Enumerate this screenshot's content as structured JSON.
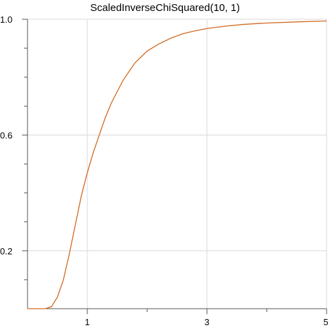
{
  "chart_data": {
    "type": "line",
    "title": "ScaledInverseChiSquared(10, 1)",
    "xlabel": "",
    "ylabel": "",
    "xlim": [
      0,
      5
    ],
    "ylim": [
      0,
      1
    ],
    "grid": true,
    "x_major_ticks": [
      1,
      3,
      5
    ],
    "x_major_tick_labels": [
      "1",
      "3",
      "5"
    ],
    "x_minor_ticks": [
      2,
      4
    ],
    "y_major_ticks": [
      0.2,
      0.6,
      1.0
    ],
    "y_major_tick_labels": [
      "0.2",
      "0.6",
      "1.0"
    ],
    "y_minor_ticks": [
      0.1,
      0.3,
      0.4,
      0.5,
      0.7,
      0.8,
      0.9
    ],
    "series": [
      {
        "color": "#d2691e",
        "x": [
          0.0,
          0.1,
          0.2,
          0.3,
          0.4,
          0.5,
          0.6,
          0.7,
          0.8,
          0.9,
          1.0,
          1.1,
          1.2,
          1.3,
          1.4,
          1.5,
          1.6,
          1.7,
          1.8,
          1.9,
          2.0,
          2.2,
          2.4,
          2.6,
          2.8,
          3.0,
          3.3,
          3.6,
          4.0,
          4.5,
          5.0
        ],
        "y": [
          0.0,
          0.0,
          0.0,
          0.0,
          0.007,
          0.04,
          0.1,
          0.19,
          0.29,
          0.39,
          0.47,
          0.54,
          0.6,
          0.66,
          0.71,
          0.75,
          0.79,
          0.82,
          0.85,
          0.87,
          0.89,
          0.915,
          0.935,
          0.95,
          0.96,
          0.968,
          0.976,
          0.982,
          0.987,
          0.991,
          0.994
        ]
      }
    ]
  }
}
